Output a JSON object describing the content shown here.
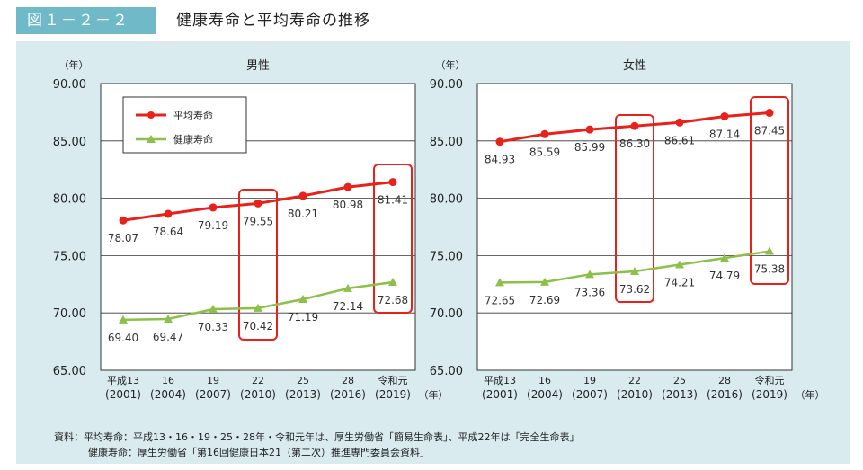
{
  "figure": {
    "label": "図１－２－２",
    "title": "健康寿命と平均寿命の推移"
  },
  "source": {
    "line1": "資料：平均寿命：平成13・16・19・25・28年・令和元年は、厚生労働省「簡易生命表」、平成22年は「完全生命表」",
    "line2": "健康寿命：厚生労働省「第16回健康日本21（第二次）推進専門委員会資料」"
  },
  "colors": {
    "life": "#e8221b",
    "healthy": "#8cc04a",
    "highlight": "#e8221b",
    "grid": "#333333",
    "panel": "#d9ebef"
  },
  "chart_data": [
    {
      "type": "line",
      "title": "男性",
      "ylabel": "（年）",
      "xlabel": "（年）",
      "ylim": [
        65,
        90
      ],
      "yticks": [
        "90.00",
        "85.00",
        "80.00",
        "75.00",
        "70.00",
        "65.00"
      ],
      "categories": [
        "平成13",
        "16",
        "19",
        "22",
        "25",
        "28",
        "令和元"
      ],
      "categories_sub": [
        "(2001)",
        "(2004)",
        "(2007)",
        "(2010)",
        "(2013)",
        "(2016)",
        "(2019)"
      ],
      "highlight_indices": [
        3,
        6
      ],
      "legend": {
        "position": "top-left",
        "entries": [
          "平均寿命",
          "健康寿命"
        ]
      },
      "series": [
        {
          "name": "平均寿命",
          "values": [
            78.07,
            78.64,
            79.19,
            79.55,
            80.21,
            80.98,
            81.41
          ],
          "labels": [
            "78.07",
            "78.64",
            "79.19",
            "79.55",
            "80.21",
            "80.98",
            "81.41"
          ]
        },
        {
          "name": "健康寿命",
          "values": [
            69.4,
            69.47,
            70.33,
            70.42,
            71.19,
            72.14,
            72.68
          ],
          "labels": [
            "69.40",
            "69.47",
            "70.33",
            "70.42",
            "71.19",
            "72.14",
            "72.68"
          ]
        }
      ]
    },
    {
      "type": "line",
      "title": "女性",
      "ylabel": "（年）",
      "xlabel": "（年）",
      "ylim": [
        65,
        90
      ],
      "yticks": [
        "90.00",
        "85.00",
        "80.00",
        "75.00",
        "70.00",
        "65.00"
      ],
      "categories": [
        "平成13",
        "16",
        "19",
        "22",
        "25",
        "28",
        "令和元"
      ],
      "categories_sub": [
        "(2001)",
        "(2004)",
        "(2007)",
        "(2010)",
        "(2013)",
        "(2016)",
        "(2019)"
      ],
      "highlight_indices": [
        3,
        6
      ],
      "series": [
        {
          "name": "平均寿命",
          "values": [
            84.93,
            85.59,
            85.99,
            86.3,
            86.61,
            87.14,
            87.45
          ],
          "labels": [
            "84.93",
            "85.59",
            "85.99",
            "86.30",
            "86.61",
            "87.14",
            "87.45"
          ]
        },
        {
          "name": "健康寿命",
          "values": [
            72.65,
            72.69,
            73.36,
            73.62,
            74.21,
            74.79,
            75.38
          ],
          "labels": [
            "72.65",
            "72.69",
            "73.36",
            "73.62",
            "74.21",
            "74.79",
            "75.38"
          ]
        }
      ]
    }
  ]
}
